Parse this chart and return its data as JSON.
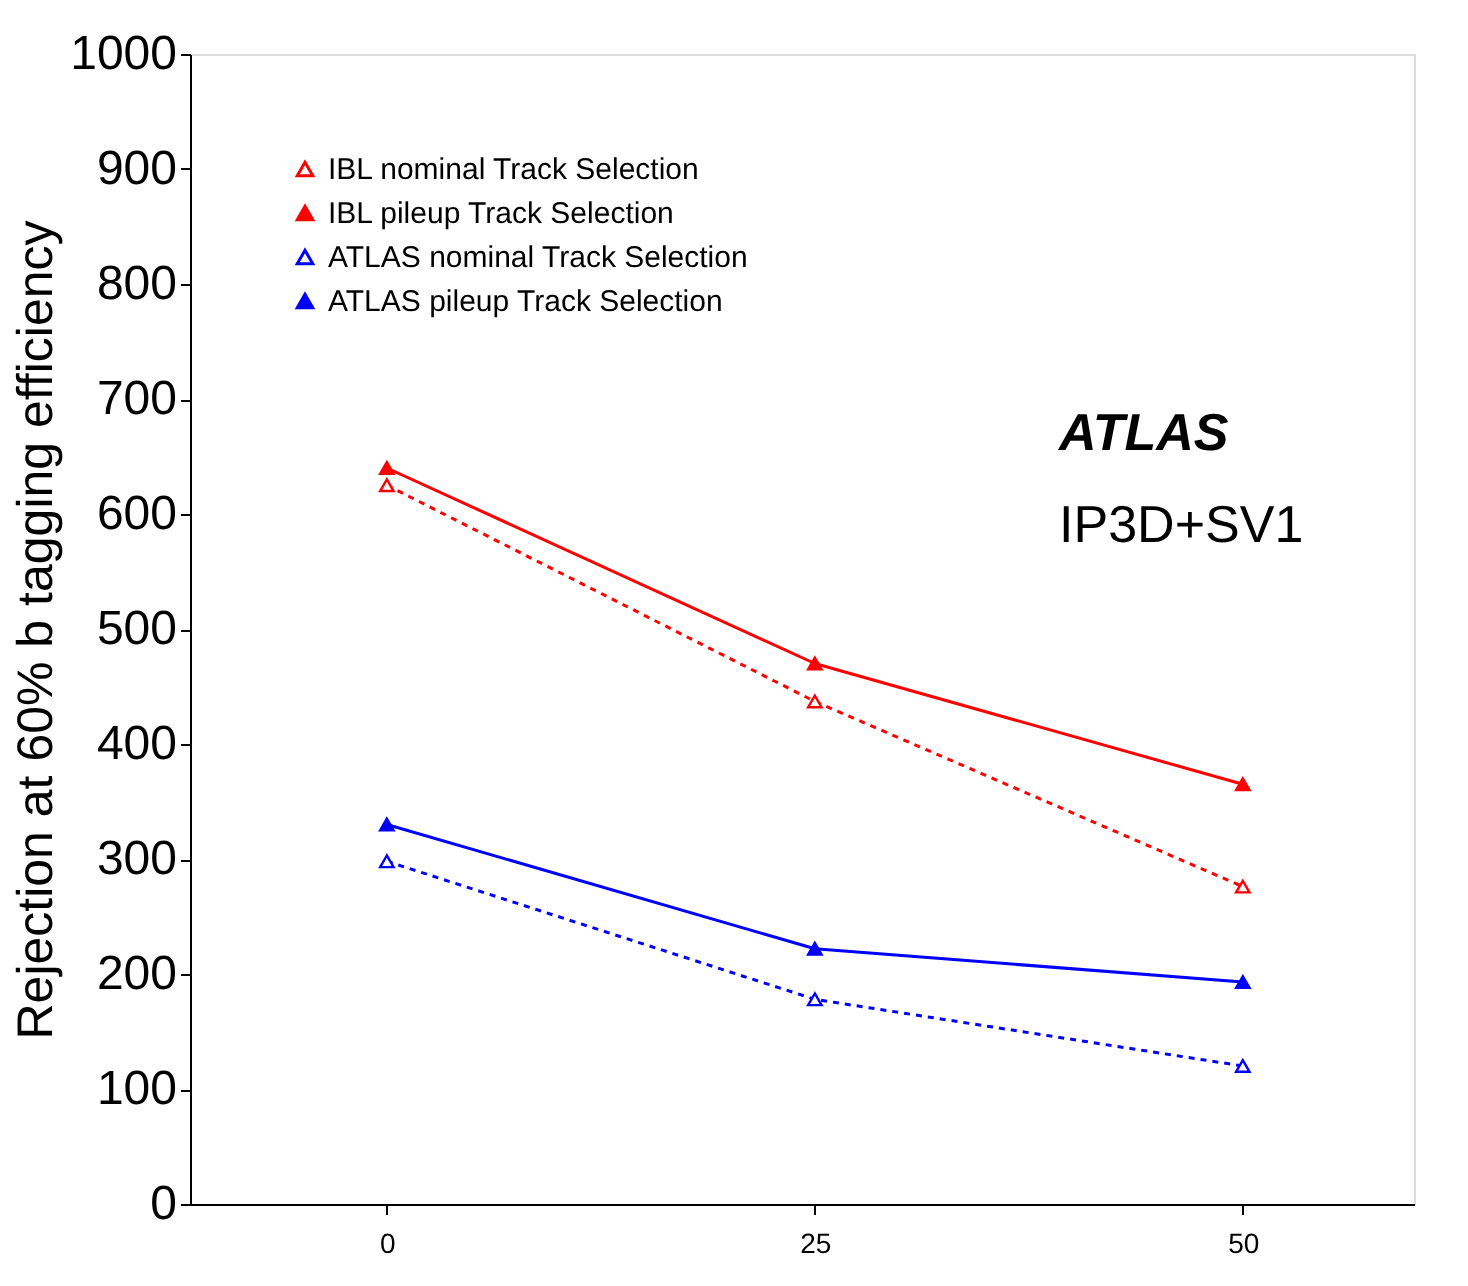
{
  "chart_data": {
    "type": "line",
    "ylabel": "Rejection at 60% b tagging efficiency",
    "x": [
      0,
      25,
      50
    ],
    "xlim": [
      -11.5,
      60
    ],
    "xticks": [
      0,
      25,
      50
    ],
    "ylim": [
      0,
      1000
    ],
    "yticks": [
      0,
      100,
      200,
      300,
      400,
      500,
      600,
      700,
      800,
      900,
      1000
    ],
    "series": [
      {
        "name": "IBL nominal Track Selection",
        "color": "#ff0000",
        "values": [
          625,
          437,
          276
        ],
        "line_style": "dotted"
      },
      {
        "name": "IBL pileup Track Selection",
        "color": "#ff0000",
        "values": [
          640,
          470,
          365
        ],
        "line_style": "solid"
      },
      {
        "name": "ATLAS nominal Track Selection",
        "color": "#0000ff",
        "values": [
          298,
          178,
          120
        ],
        "line_style": "dotted"
      },
      {
        "name": "ATLAS pileup Track Selection",
        "color": "#0000ff",
        "values": [
          330,
          222,
          193
        ],
        "line_style": "solid"
      }
    ],
    "marker": "triangle",
    "legend": "top left",
    "grid": false,
    "annotations": [
      "ATLAS",
      "IP3D+SV1"
    ]
  }
}
